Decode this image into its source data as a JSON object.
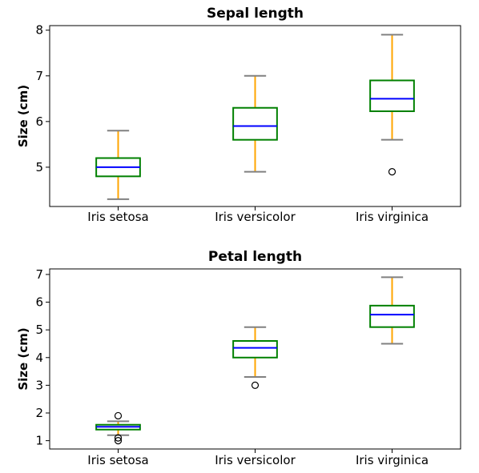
{
  "chart_data": [
    {
      "type": "box",
      "title": "Sepal length",
      "xlabel": "",
      "ylabel": "Size (cm)",
      "categories": [
        "Iris setosa",
        "Iris versicolor",
        "Iris virginica"
      ],
      "ylim": [
        4.14,
        8.1
      ],
      "yticks": [
        5,
        6,
        7,
        8
      ],
      "grid": false,
      "boxes": [
        {
          "whislo": 4.3,
          "q1": 4.8,
          "med": 5.0,
          "q3": 5.2,
          "whishi": 5.8,
          "fliers": []
        },
        {
          "whislo": 4.9,
          "q1": 5.6,
          "med": 5.9,
          "q3": 6.3,
          "whishi": 7.0,
          "fliers": []
        },
        {
          "whislo": 5.6,
          "q1": 6.225,
          "med": 6.5,
          "q3": 6.9,
          "whishi": 7.9,
          "fliers": [
            4.9
          ]
        }
      ]
    },
    {
      "type": "box",
      "title": "Petal length",
      "xlabel": "",
      "ylabel": "Size (cm)",
      "categories": [
        "Iris setosa",
        "Iris versicolor",
        "Iris virginica"
      ],
      "ylim": [
        0.7,
        7.2
      ],
      "yticks": [
        1,
        2,
        3,
        4,
        5,
        6,
        7
      ],
      "grid": false,
      "boxes": [
        {
          "whislo": 1.2,
          "q1": 1.4,
          "med": 1.5,
          "q3": 1.575,
          "whishi": 1.7,
          "fliers": [
            1.9,
            1.0,
            1.1
          ]
        },
        {
          "whislo": 3.3,
          "q1": 4.0,
          "med": 4.35,
          "q3": 4.6,
          "whishi": 5.1,
          "fliers": [
            3.0
          ]
        },
        {
          "whislo": 4.5,
          "q1": 5.1,
          "med": 5.55,
          "q3": 5.875,
          "whishi": 6.9,
          "fliers": []
        }
      ]
    }
  ],
  "style": {
    "box_color": "#008000",
    "median_color": "#0000ff",
    "whisker_color": "#ffa500",
    "cap_color": "#808080",
    "flier_color": "#000000"
  }
}
